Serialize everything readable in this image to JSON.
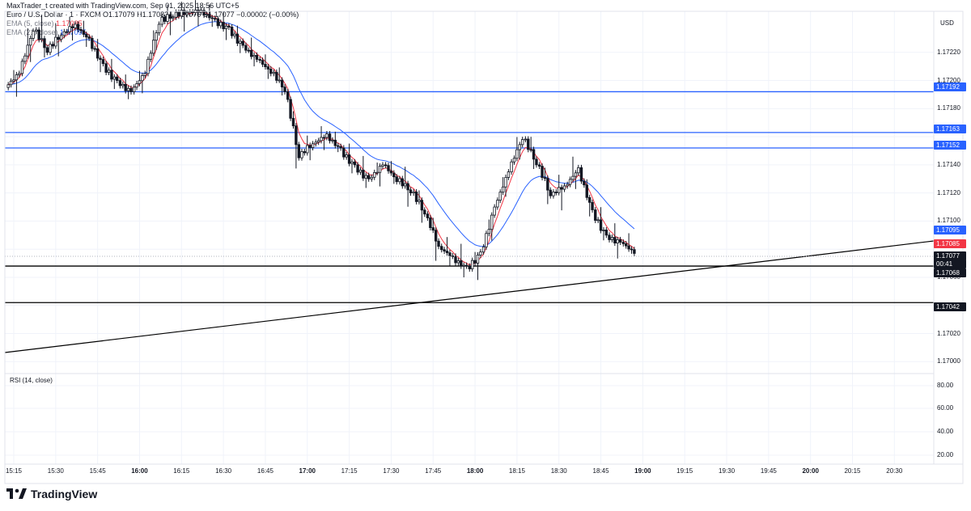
{
  "header": {
    "attribution": "MaxTrader_t created with TradingView.com, Sep 01, 2025 18:56 UTC+5",
    "symbol": "Euro / U.S. Dollar · 1 · FXCM",
    "ohlc": "O1.17079  H1.17083  L1.17076  C1.17077  −0.00002 (−0.00%)",
    "ema_short_label": "EMA (5, close)",
    "ema_short_value": "1.17085",
    "ema_long_label": "EMA (21, close)",
    "ema_long_value": "1.17095"
  },
  "axis": {
    "currency": "USD",
    "price_ticks": [
      "1.17220",
      "1.17200",
      "1.17180",
      "1.17140",
      "1.17120",
      "1.17100",
      "1.17060",
      "1.17020",
      "1.17000"
    ],
    "time_ticks": [
      {
        "label": "15:15",
        "bold": false
      },
      {
        "label": "15:30",
        "bold": false
      },
      {
        "label": "15:45",
        "bold": false
      },
      {
        "label": "16:00",
        "bold": true
      },
      {
        "label": "16:15",
        "bold": false
      },
      {
        "label": "16:30",
        "bold": false
      },
      {
        "label": "16:45",
        "bold": false
      },
      {
        "label": "17:00",
        "bold": true
      },
      {
        "label": "17:15",
        "bold": false
      },
      {
        "label": "17:30",
        "bold": false
      },
      {
        "label": "17:45",
        "bold": false
      },
      {
        "label": "18:00",
        "bold": true
      },
      {
        "label": "18:15",
        "bold": false
      },
      {
        "label": "18:30",
        "bold": false
      },
      {
        "label": "18:45",
        "bold": false
      },
      {
        "label": "19:00",
        "bold": true
      },
      {
        "label": "19:15",
        "bold": false
      },
      {
        "label": "19:30",
        "bold": false
      },
      {
        "label": "19:45",
        "bold": false
      },
      {
        "label": "20:00",
        "bold": true
      },
      {
        "label": "20:15",
        "bold": false
      },
      {
        "label": "20:30",
        "bold": false
      }
    ]
  },
  "tags": {
    "line_1": "1.17192",
    "line_2": "1.17163",
    "line_3": "1.17152",
    "ema_long": "1.17095",
    "ema_short": "1.17085",
    "last_price": "1.17077",
    "countdown": "00:41",
    "line_4": "1.17068",
    "line_5": "1.17042"
  },
  "rsi": {
    "label": "RSI (14, close)",
    "ticks": [
      "80.00",
      "60.00",
      "40.00",
      "20.00"
    ]
  },
  "colors": {
    "bull": "#131722",
    "bear": "#131722",
    "ema_short": "#f23645",
    "ema_long": "#2962ff",
    "hline_blue": "#2962ff",
    "hline_black": "#000000",
    "trendline": "#000000"
  },
  "brand": "TradingView",
  "chart_data": {
    "type": "candlestick",
    "timeframe": "1 minute",
    "y_range": [
      1.16995,
      1.1724
    ],
    "horizontal_levels": [
      1.17192,
      1.17163,
      1.17152,
      1.17068,
      1.17042
    ],
    "trendline": {
      "start": [
        "15:15",
        1.17015
      ],
      "end": [
        "20:55",
        1.17088
      ]
    },
    "candles": [
      {
        "t": "15:15",
        "o": 1.17195,
        "h": 1.1721,
        "l": 1.17185,
        "c": 1.17205
      },
      {
        "t": "15:20",
        "o": 1.17205,
        "h": 1.17245,
        "l": 1.17195,
        "c": 1.17235
      },
      {
        "t": "15:25",
        "o": 1.17235,
        "h": 1.1725,
        "l": 1.17215,
        "c": 1.1722
      },
      {
        "t": "15:30",
        "o": 1.1722,
        "h": 1.1724,
        "l": 1.1721,
        "c": 1.17232
      },
      {
        "t": "15:35",
        "o": 1.17232,
        "h": 1.17245,
        "l": 1.17225,
        "c": 1.1724
      },
      {
        "t": "15:40",
        "o": 1.1724,
        "h": 1.17245,
        "l": 1.17225,
        "c": 1.1723
      },
      {
        "t": "15:45",
        "o": 1.1723,
        "h": 1.17235,
        "l": 1.17205,
        "c": 1.17212
      },
      {
        "t": "15:50",
        "o": 1.17212,
        "h": 1.17218,
        "l": 1.17195,
        "c": 1.172
      },
      {
        "t": "15:55",
        "o": 1.172,
        "h": 1.17205,
        "l": 1.17188,
        "c": 1.17192
      },
      {
        "t": "16:00",
        "o": 1.17192,
        "h": 1.1721,
        "l": 1.17185,
        "c": 1.17205
      },
      {
        "t": "16:05",
        "o": 1.17205,
        "h": 1.17245,
        "l": 1.172,
        "c": 1.1724
      },
      {
        "t": "16:10",
        "o": 1.1724,
        "h": 1.1725,
        "l": 1.1723,
        "c": 1.17245
      },
      {
        "t": "16:15",
        "o": 1.17245,
        "h": 1.17252,
        "l": 1.17235,
        "c": 1.17248
      },
      {
        "t": "16:20",
        "o": 1.17248,
        "h": 1.17255,
        "l": 1.1724,
        "c": 1.1725
      },
      {
        "t": "16:25",
        "o": 1.1725,
        "h": 1.17255,
        "l": 1.1724,
        "c": 1.17244
      },
      {
        "t": "16:30",
        "o": 1.17244,
        "h": 1.1725,
        "l": 1.17232,
        "c": 1.17238
      },
      {
        "t": "16:35",
        "o": 1.17238,
        "h": 1.17242,
        "l": 1.1722,
        "c": 1.17225
      },
      {
        "t": "16:40",
        "o": 1.17225,
        "h": 1.17232,
        "l": 1.1721,
        "c": 1.17215
      },
      {
        "t": "16:45",
        "o": 1.17215,
        "h": 1.1722,
        "l": 1.172,
        "c": 1.17205
      },
      {
        "t": "16:50",
        "o": 1.17205,
        "h": 1.17212,
        "l": 1.17188,
        "c": 1.17192
      },
      {
        "t": "16:55",
        "o": 1.17192,
        "h": 1.17195,
        "l": 1.1713,
        "c": 1.17145
      },
      {
        "t": "17:00",
        "o": 1.17145,
        "h": 1.1716,
        "l": 1.17138,
        "c": 1.17155
      },
      {
        "t": "17:05",
        "o": 1.17155,
        "h": 1.17168,
        "l": 1.17148,
        "c": 1.17162
      },
      {
        "t": "17:10",
        "o": 1.17162,
        "h": 1.17166,
        "l": 1.1715,
        "c": 1.17152
      },
      {
        "t": "17:15",
        "o": 1.17152,
        "h": 1.17158,
        "l": 1.17135,
        "c": 1.1714
      },
      {
        "t": "17:20",
        "o": 1.1714,
        "h": 1.17148,
        "l": 1.17125,
        "c": 1.1713
      },
      {
        "t": "17:25",
        "o": 1.1713,
        "h": 1.17145,
        "l": 1.17122,
        "c": 1.1714
      },
      {
        "t": "17:30",
        "o": 1.1714,
        "h": 1.17145,
        "l": 1.17125,
        "c": 1.17128
      },
      {
        "t": "17:35",
        "o": 1.17128,
        "h": 1.17138,
        "l": 1.1711,
        "c": 1.1712
      },
      {
        "t": "17:40",
        "o": 1.1712,
        "h": 1.17125,
        "l": 1.17098,
        "c": 1.17105
      },
      {
        "t": "17:45",
        "o": 1.17105,
        "h": 1.1711,
        "l": 1.1707,
        "c": 1.17082
      },
      {
        "t": "17:50",
        "o": 1.17082,
        "h": 1.1709,
        "l": 1.1707,
        "c": 1.17075
      },
      {
        "t": "17:55",
        "o": 1.17075,
        "h": 1.17085,
        "l": 1.17062,
        "c": 1.17068
      },
      {
        "t": "18:00",
        "o": 1.17068,
        "h": 1.17082,
        "l": 1.17058,
        "c": 1.17078
      },
      {
        "t": "18:05",
        "o": 1.17078,
        "h": 1.17115,
        "l": 1.17072,
        "c": 1.1711
      },
      {
        "t": "18:10",
        "o": 1.1711,
        "h": 1.1714,
        "l": 1.17105,
        "c": 1.17135
      },
      {
        "t": "18:15",
        "o": 1.17135,
        "h": 1.17165,
        "l": 1.1713,
        "c": 1.17158
      },
      {
        "t": "18:20",
        "o": 1.17158,
        "h": 1.17165,
        "l": 1.17135,
        "c": 1.1714
      },
      {
        "t": "18:25",
        "o": 1.1714,
        "h": 1.17145,
        "l": 1.1711,
        "c": 1.17118
      },
      {
        "t": "18:30",
        "o": 1.17118,
        "h": 1.17132,
        "l": 1.17105,
        "c": 1.17125
      },
      {
        "t": "18:35",
        "o": 1.17125,
        "h": 1.1715,
        "l": 1.17118,
        "c": 1.17138
      },
      {
        "t": "18:40",
        "o": 1.17138,
        "h": 1.1714,
        "l": 1.171,
        "c": 1.17108
      },
      {
        "t": "18:45",
        "o": 1.17108,
        "h": 1.17115,
        "l": 1.17085,
        "c": 1.1709
      },
      {
        "t": "18:50",
        "o": 1.1709,
        "h": 1.17098,
        "l": 1.17076,
        "c": 1.17085
      },
      {
        "t": "18:55",
        "o": 1.17085,
        "h": 1.17092,
        "l": 1.17076,
        "c": 1.17077
      }
    ]
  }
}
